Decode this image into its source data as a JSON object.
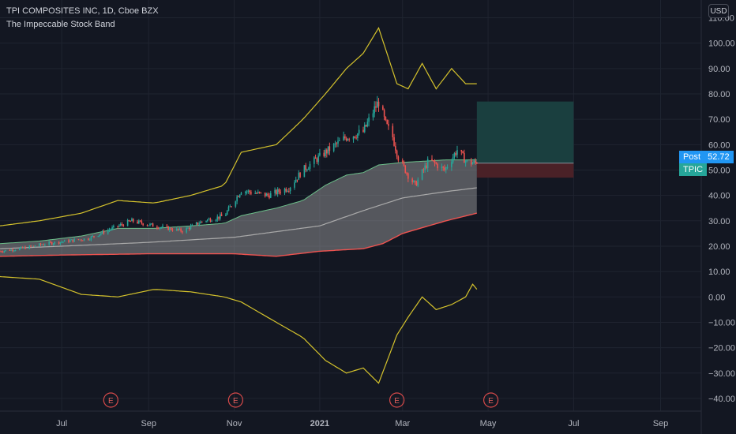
{
  "header": {
    "title": "TPI COMPOSITES INC, 1D, Cboe BZX",
    "indicator": "The Impeccable Stock Band"
  },
  "currency": "USD",
  "price_tags": {
    "post_label": "Post",
    "post_value": "52.72",
    "symbol": "TPIC"
  },
  "earnings_marker": "E",
  "colors": {
    "background": "#131722",
    "up": "#26a69a",
    "down": "#ef5350",
    "outer_band": "#d4c22c",
    "lower_band": "#ef5350",
    "upper_inner_band": "#6cbf8a",
    "mid_line": "#aaaaaa",
    "band_fill": "#b0b0b0",
    "target_zone": "#1a3f3f",
    "stop_zone": "#4a2127"
  },
  "chart_data": {
    "type": "candlestick",
    "title": "TPI COMPOSITES INC, 1D, Cboe BZX",
    "y_ticks": [
      110,
      100,
      90,
      80,
      70,
      60,
      50,
      40,
      30,
      20,
      10,
      0,
      -10,
      -20,
      -30,
      -40
    ],
    "y_tick_labels": [
      "110.00",
      "100.00",
      "90.00",
      "80.00",
      "70.00",
      "60.00",
      "50.00",
      "40.00",
      "30.00",
      "20.00",
      "10.00",
      "0.00",
      "−10.00",
      "−20.00",
      "−30.00",
      "−40.00"
    ],
    "ylim": [
      -45,
      117
    ],
    "x_range": [
      "2020-05-18",
      "2021-09-30"
    ],
    "x_ticks": [
      {
        "date": "2020-07-01",
        "label": "Jul"
      },
      {
        "date": "2020-09-01",
        "label": "Sep"
      },
      {
        "date": "2020-11-01",
        "label": "Nov"
      },
      {
        "date": "2021-01-01",
        "label": "2021"
      },
      {
        "date": "2021-03-01",
        "label": "Mar"
      },
      {
        "date": "2021-05-01",
        "label": "May"
      },
      {
        "date": "2021-07-01",
        "label": "Jul"
      },
      {
        "date": "2021-09-01",
        "label": "Sep"
      }
    ],
    "earnings_dates": [
      "2020-08-05",
      "2020-11-02",
      "2021-02-25",
      "2021-05-03"
    ],
    "last_date": "2021-04-23",
    "last_price": 52.72,
    "position": {
      "entry": 52.72,
      "target": 77,
      "stop": 47,
      "start": "2021-04-23",
      "end": "2021-07-01"
    },
    "price_anchors": [
      [
        "2020-05-18",
        18
      ],
      [
        "2020-06-01",
        19
      ],
      [
        "2020-06-20",
        21
      ],
      [
        "2020-07-05",
        22
      ],
      [
        "2020-07-20",
        23
      ],
      [
        "2020-08-06",
        27
      ],
      [
        "2020-08-20",
        30
      ],
      [
        "2020-09-05",
        28
      ],
      [
        "2020-09-25",
        26
      ],
      [
        "2020-10-10",
        30
      ],
      [
        "2020-10-25",
        32
      ],
      [
        "2020-11-06",
        42
      ],
      [
        "2020-11-25",
        40
      ],
      [
        "2020-12-10",
        43
      ],
      [
        "2020-12-20",
        50
      ],
      [
        "2021-01-05",
        57
      ],
      [
        "2021-01-20",
        63
      ],
      [
        "2021-02-01",
        65
      ],
      [
        "2021-02-08",
        73
      ],
      [
        "2021-02-12",
        77
      ],
      [
        "2021-02-17",
        68
      ],
      [
        "2021-02-22",
        63
      ],
      [
        "2021-02-26",
        55
      ],
      [
        "2021-03-05",
        48
      ],
      [
        "2021-03-10",
        44
      ],
      [
        "2021-03-20",
        54
      ],
      [
        "2021-03-31",
        50
      ],
      [
        "2021-04-09",
        58
      ],
      [
        "2021-04-16",
        53
      ],
      [
        "2021-04-23",
        52.7
      ]
    ],
    "upper_band": [
      [
        "2020-05-18",
        28
      ],
      [
        "2020-06-15",
        30
      ],
      [
        "2020-07-15",
        33
      ],
      [
        "2020-08-10",
        38
      ],
      [
        "2020-09-05",
        37
      ],
      [
        "2020-10-01",
        40
      ],
      [
        "2020-10-25",
        44
      ],
      [
        "2020-11-06",
        57
      ],
      [
        "2020-12-01",
        60
      ],
      [
        "2020-12-20",
        70
      ],
      [
        "2021-01-05",
        80
      ],
      [
        "2021-01-20",
        90
      ],
      [
        "2021-02-01",
        96
      ],
      [
        "2021-02-12",
        106
      ],
      [
        "2021-02-25",
        84
      ],
      [
        "2021-03-05",
        82
      ],
      [
        "2021-03-15",
        92
      ],
      [
        "2021-03-25",
        82
      ],
      [
        "2021-04-05",
        90
      ],
      [
        "2021-04-15",
        84
      ],
      [
        "2021-04-23",
        84
      ]
    ],
    "upper_inner_band": [
      [
        "2020-05-18",
        21
      ],
      [
        "2020-06-15",
        22
      ],
      [
        "2020-07-15",
        24
      ],
      [
        "2020-08-10",
        27
      ],
      [
        "2020-09-05",
        27
      ],
      [
        "2020-10-01",
        28
      ],
      [
        "2020-10-25",
        29
      ],
      [
        "2020-11-06",
        32
      ],
      [
        "2020-12-01",
        35
      ],
      [
        "2020-12-20",
        38
      ],
      [
        "2021-01-05",
        44
      ],
      [
        "2021-01-20",
        48
      ],
      [
        "2021-02-01",
        49
      ],
      [
        "2021-02-12",
        52
      ],
      [
        "2021-03-01",
        53
      ],
      [
        "2021-04-01",
        54
      ],
      [
        "2021-04-23",
        54
      ]
    ],
    "mid_line": [
      [
        "2020-05-18",
        19
      ],
      [
        "2020-07-01",
        20
      ],
      [
        "2020-09-01",
        21.5
      ],
      [
        "2020-11-01",
        23.5
      ],
      [
        "2021-01-01",
        28
      ],
      [
        "2021-02-01",
        34
      ],
      [
        "2021-03-01",
        39
      ],
      [
        "2021-04-01",
        41.5
      ],
      [
        "2021-04-23",
        43
      ]
    ],
    "lower_band": [
      [
        "2020-05-18",
        16
      ],
      [
        "2020-07-01",
        16.5
      ],
      [
        "2020-09-01",
        17
      ],
      [
        "2020-11-01",
        17
      ],
      [
        "2020-12-01",
        16
      ],
      [
        "2021-01-01",
        18
      ],
      [
        "2021-02-01",
        19
      ],
      [
        "2021-02-15",
        21
      ],
      [
        "2021-03-01",
        25
      ],
      [
        "2021-04-01",
        30
      ],
      [
        "2021-04-23",
        33
      ]
    ],
    "lower_outer_band": [
      [
        "2020-05-18",
        8
      ],
      [
        "2020-06-15",
        7
      ],
      [
        "2020-07-15",
        1
      ],
      [
        "2020-08-10",
        0
      ],
      [
        "2020-09-05",
        3
      ],
      [
        "2020-10-01",
        2
      ],
      [
        "2020-10-25",
        0
      ],
      [
        "2020-11-06",
        -2
      ],
      [
        "2020-12-01",
        -10
      ],
      [
        "2020-12-20",
        -16
      ],
      [
        "2021-01-05",
        -25
      ],
      [
        "2021-01-20",
        -30
      ],
      [
        "2021-02-01",
        -28
      ],
      [
        "2021-02-12",
        -34
      ],
      [
        "2021-02-25",
        -15
      ],
      [
        "2021-03-05",
        -8
      ],
      [
        "2021-03-15",
        0
      ],
      [
        "2021-03-25",
        -5
      ],
      [
        "2021-04-05",
        -3
      ],
      [
        "2021-04-15",
        0
      ],
      [
        "2021-04-20",
        5
      ],
      [
        "2021-04-23",
        3
      ]
    ]
  }
}
